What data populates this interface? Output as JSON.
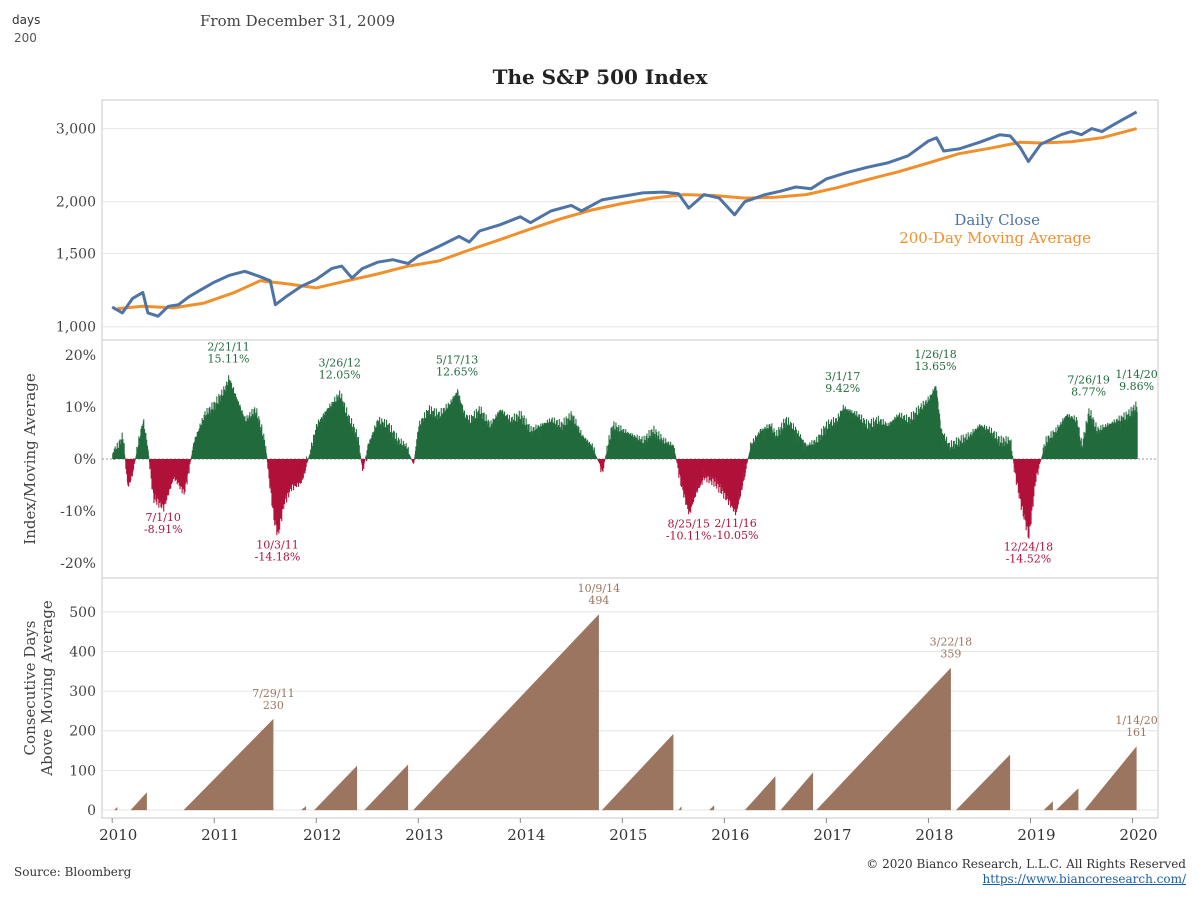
{
  "header": {
    "param_label": "days",
    "param_value": "200",
    "from_text": "From December 31, 2009"
  },
  "title": "The S&P 500 Index",
  "footer": {
    "source": "Source: Bloomberg",
    "copyright": "© 2020 Bianco Research, L.L.C. All Rights Reserved",
    "url": "https://www.biancoresearch.com/"
  },
  "colors": {
    "close": "#4e74a6",
    "ma": "#f0902c",
    "positive": "#226b3c",
    "negative": "#b0123a",
    "streak": "#9c7560",
    "grid": "#e6e6e6",
    "border": "#c8c8c8"
  },
  "chart_data": [
    {
      "type": "line",
      "panel": "price",
      "ylim": [
        950,
        3400
      ],
      "log_scale": true,
      "y_ticks": [
        "1,000",
        "1,500",
        "2,000",
        "3,000"
      ],
      "y_tick_values": [
        1000,
        1500,
        2000,
        3000
      ],
      "legend": [
        "Daily Close",
        "200-Day Moving Average"
      ],
      "legend_position": "right",
      "series": [
        {
          "name": "Daily Close",
          "x": [
            2010.0,
            2010.1,
            2010.2,
            2010.3,
            2010.35,
            2010.45,
            2010.55,
            2010.65,
            2010.75,
            2010.85,
            2011.0,
            2011.15,
            2011.3,
            2011.45,
            2011.55,
            2011.6,
            2011.7,
            2011.85,
            2012.0,
            2012.15,
            2012.25,
            2012.35,
            2012.45,
            2012.6,
            2012.75,
            2012.9,
            2013.0,
            2013.2,
            2013.4,
            2013.5,
            2013.6,
            2013.8,
            2014.0,
            2014.1,
            2014.3,
            2014.5,
            2014.6,
            2014.8,
            2015.0,
            2015.2,
            2015.4,
            2015.55,
            2015.65,
            2015.8,
            2015.95,
            2016.1,
            2016.2,
            2016.4,
            2016.55,
            2016.7,
            2016.85,
            2017.0,
            2017.2,
            2017.4,
            2017.6,
            2017.8,
            2018.0,
            2018.08,
            2018.15,
            2018.3,
            2018.5,
            2018.7,
            2018.8,
            2018.9,
            2018.98,
            2019.1,
            2019.3,
            2019.4,
            2019.5,
            2019.6,
            2019.7,
            2019.8,
            2019.9,
            2020.04
          ],
          "y": [
            1115,
            1080,
            1170,
            1210,
            1080,
            1060,
            1120,
            1130,
            1180,
            1220,
            1280,
            1330,
            1360,
            1320,
            1290,
            1130,
            1180,
            1250,
            1300,
            1380,
            1400,
            1310,
            1380,
            1430,
            1450,
            1420,
            1480,
            1560,
            1650,
            1600,
            1700,
            1760,
            1840,
            1780,
            1900,
            1960,
            1900,
            2020,
            2060,
            2100,
            2110,
            2090,
            1930,
            2080,
            2040,
            1860,
            2000,
            2080,
            2120,
            2170,
            2150,
            2270,
            2350,
            2420,
            2480,
            2580,
            2800,
            2850,
            2650,
            2680,
            2780,
            2900,
            2880,
            2700,
            2500,
            2750,
            2900,
            2950,
            2900,
            3000,
            2950,
            3050,
            3150,
            3290
          ]
        },
        {
          "name": "200-Day Moving Average",
          "x": [
            2010.05,
            2010.3,
            2010.6,
            2010.9,
            2011.2,
            2011.45,
            2011.7,
            2012.0,
            2012.3,
            2012.6,
            2012.9,
            2013.2,
            2013.5,
            2013.8,
            2014.1,
            2014.4,
            2014.7,
            2015.0,
            2015.3,
            2015.6,
            2015.9,
            2016.2,
            2016.5,
            2016.8,
            2017.1,
            2017.4,
            2017.7,
            2018.0,
            2018.3,
            2018.6,
            2018.9,
            2019.1,
            2019.4,
            2019.7,
            2020.04
          ],
          "y": [
            1105,
            1120,
            1110,
            1140,
            1210,
            1290,
            1270,
            1240,
            1290,
            1340,
            1400,
            1440,
            1530,
            1620,
            1720,
            1820,
            1910,
            1980,
            2040,
            2080,
            2070,
            2040,
            2050,
            2080,
            2160,
            2260,
            2360,
            2480,
            2610,
            2690,
            2780,
            2770,
            2790,
            2850,
            3000
          ]
        }
      ]
    },
    {
      "type": "area",
      "panel": "deviation",
      "ylabel": "Index/Moving Average",
      "ylim": [
        -21,
        21
      ],
      "y_ticks": [
        "20%",
        "10%",
        "0%",
        "-10%",
        "-20%"
      ],
      "y_tick_values": [
        20,
        10,
        0,
        -10,
        -20
      ],
      "series": [
        {
          "name": "Index/Moving Average",
          "x": [
            2010.0,
            2010.05,
            2010.1,
            2010.15,
            2010.2,
            2010.3,
            2010.35,
            2010.4,
            2010.5,
            2010.6,
            2010.7,
            2010.8,
            2010.9,
            2011.0,
            2011.1,
            2011.14,
            2011.2,
            2011.3,
            2011.4,
            2011.45,
            2011.5,
            2011.58,
            2011.62,
            2011.68,
            2011.75,
            2011.85,
            2011.95,
            2012.0,
            2012.1,
            2012.23,
            2012.3,
            2012.4,
            2012.45,
            2012.5,
            2012.6,
            2012.7,
            2012.8,
            2012.88,
            2012.95,
            2013.0,
            2013.1,
            2013.2,
            2013.3,
            2013.38,
            2013.45,
            2013.5,
            2013.6,
            2013.7,
            2013.8,
            2013.9,
            2014.0,
            2014.1,
            2014.2,
            2014.3,
            2014.4,
            2014.5,
            2014.6,
            2014.7,
            2014.8,
            2014.85,
            2014.9,
            2015.0,
            2015.1,
            2015.2,
            2015.3,
            2015.4,
            2015.5,
            2015.58,
            2015.65,
            2015.72,
            2015.8,
            2015.9,
            2015.98,
            2016.05,
            2016.11,
            2016.18,
            2016.25,
            2016.35,
            2016.45,
            2016.5,
            2016.6,
            2016.7,
            2016.8,
            2016.9,
            2017.0,
            2017.1,
            2017.16,
            2017.3,
            2017.4,
            2017.5,
            2017.6,
            2017.7,
            2017.8,
            2017.9,
            2018.0,
            2018.07,
            2018.12,
            2018.2,
            2018.3,
            2018.4,
            2018.5,
            2018.6,
            2018.7,
            2018.8,
            2018.85,
            2018.9,
            2018.98,
            2019.05,
            2019.15,
            2019.25,
            2019.35,
            2019.45,
            2019.5,
            2019.57,
            2019.65,
            2019.75,
            2019.85,
            2019.95,
            2020.04
          ],
          "y": [
            1,
            2,
            4,
            -5,
            -2,
            7,
            1,
            -7,
            -8.91,
            -3,
            -6,
            3,
            8,
            10,
            13,
            15.11,
            12,
            7,
            9,
            6,
            2,
            -11,
            -14.18,
            -8,
            -5,
            -4,
            2,
            6,
            9,
            12.05,
            8,
            4,
            -2,
            2,
            7,
            6,
            3,
            2,
            -1,
            6,
            9,
            8,
            10,
            12.65,
            8,
            7,
            9,
            6,
            9,
            7,
            8,
            5,
            6,
            7,
            6,
            8,
            4,
            2,
            -2,
            2,
            6,
            5,
            4,
            3,
            5,
            3,
            2,
            -5,
            -10.11,
            -6,
            -3,
            -4,
            -6,
            -8,
            -10.05,
            -4,
            2,
            5,
            6,
            4,
            7,
            5,
            2,
            3,
            6,
            7,
            9.42,
            8,
            6,
            7,
            6,
            8,
            7,
            9,
            11,
            13.65,
            5,
            2,
            3,
            4,
            6,
            5,
            3,
            3,
            -3,
            -8,
            -14.52,
            -3,
            3,
            5,
            8,
            7,
            2,
            8.77,
            5,
            6,
            7,
            8,
            9.86
          ]
        }
      ],
      "annotations": [
        {
          "date": "7/1/10",
          "value": "-8.91%"
        },
        {
          "date": "2/21/11",
          "value": "15.11%"
        },
        {
          "date": "10/3/11",
          "value": "-14.18%"
        },
        {
          "date": "3/26/12",
          "value": "12.05%"
        },
        {
          "date": "5/17/13",
          "value": "12.65%"
        },
        {
          "date": "8/25/15",
          "value": "-10.11%"
        },
        {
          "date": "2/11/16",
          "value": "-10.05%"
        },
        {
          "date": "3/1/17",
          "value": "9.42%"
        },
        {
          "date": "1/26/18",
          "value": "13.65%"
        },
        {
          "date": "12/24/18",
          "value": "-14.52%"
        },
        {
          "date": "7/26/19",
          "value": "8.77%"
        },
        {
          "date": "1/14/20",
          "value": "9.86%"
        }
      ]
    },
    {
      "type": "area",
      "panel": "streak",
      "ylabel": "Consecutive Days Above Moving Average",
      "ylim": [
        -15,
        560
      ],
      "y_ticks": [
        "500",
        "400",
        "300",
        "200",
        "100",
        "0"
      ],
      "y_tick_values": [
        500,
        400,
        300,
        200,
        100,
        0
      ],
      "x_ticks": [
        "2010",
        "2011",
        "2012",
        "2013",
        "2014",
        "2015",
        "2016",
        "2017",
        "2018",
        "2019",
        "2020"
      ],
      "x_tick_values": [
        2010,
        2011,
        2012,
        2013,
        2014,
        2015,
        2016,
        2017,
        2018,
        2019,
        2020
      ],
      "streaks": [
        {
          "start": 2010.02,
          "end": 2010.05,
          "peak": 8
        },
        {
          "start": 2010.18,
          "end": 2010.34,
          "peak": 45
        },
        {
          "start": 2010.7,
          "end": 2011.58,
          "peak": 230
        },
        {
          "start": 2011.85,
          "end": 2011.9,
          "peak": 10
        },
        {
          "start": 2011.98,
          "end": 2012.4,
          "peak": 112
        },
        {
          "start": 2012.47,
          "end": 2012.9,
          "peak": 115
        },
        {
          "start": 2012.95,
          "end": 2014.77,
          "peak": 494
        },
        {
          "start": 2014.8,
          "end": 2015.5,
          "peak": 192
        },
        {
          "start": 2015.55,
          "end": 2015.58,
          "peak": 10
        },
        {
          "start": 2015.85,
          "end": 2015.9,
          "peak": 12
        },
        {
          "start": 2016.2,
          "end": 2016.5,
          "peak": 85
        },
        {
          "start": 2016.55,
          "end": 2016.87,
          "peak": 95
        },
        {
          "start": 2016.9,
          "end": 2018.22,
          "peak": 359
        },
        {
          "start": 2018.27,
          "end": 2018.8,
          "peak": 140
        },
        {
          "start": 2019.13,
          "end": 2019.22,
          "peak": 22
        },
        {
          "start": 2019.25,
          "end": 2019.47,
          "peak": 55
        },
        {
          "start": 2019.53,
          "end": 2020.04,
          "peak": 161
        }
      ],
      "annotations": [
        {
          "date": "7/29/11",
          "value": "230"
        },
        {
          "date": "10/9/14",
          "value": "494"
        },
        {
          "date": "3/22/18",
          "value": "359"
        },
        {
          "date": "1/14/20",
          "value": "161"
        }
      ]
    }
  ]
}
